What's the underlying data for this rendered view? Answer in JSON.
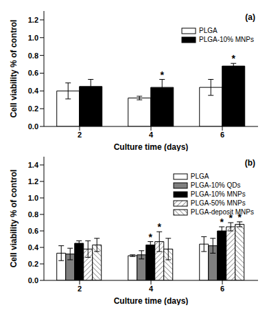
{
  "chart_data": [
    {
      "type": "bar",
      "title": "(a)",
      "x_label": "Culture time (days)",
      "y_label": "Cell viability % of control",
      "categories": [
        "2",
        "4",
        "6"
      ],
      "series": [
        {
          "name": "PLGA",
          "color": "#ffffff",
          "values": [
            0.4,
            0.32,
            0.44
          ],
          "error": [
            0.09,
            0.02,
            0.09
          ],
          "annotations": [
            null,
            null,
            null
          ]
        },
        {
          "name": "PLGA-10% MNPs",
          "color": "#000000",
          "values": [
            0.45,
            0.44,
            0.68
          ],
          "error": [
            0.08,
            0.09,
            0.03
          ],
          "annotations": [
            null,
            "*",
            "*"
          ]
        }
      ],
      "ylim": [
        0,
        1.3
      ],
      "yticks": [
        {
          "value": 0,
          "label": "0.0"
        },
        0.2,
        0.4,
        0.6,
        0.8,
        {
          "value": 1,
          "label": "1.0"
        },
        1.2
      ],
      "legend": "upper right",
      "grid": false
    },
    {
      "type": "bar",
      "title": "(b)",
      "x_label": "Culture time (days)",
      "y_label": "Cell viability % of control",
      "categories": [
        "2",
        "4",
        "6"
      ],
      "series": [
        {
          "name": "PLGA",
          "color": "#ffffff",
          "values": [
            0.33,
            0.3,
            0.44
          ],
          "error": [
            0.09,
            0.01,
            0.09
          ],
          "annotations": [
            null,
            null,
            null
          ]
        },
        {
          "name": "PLGA-10% QDs",
          "color": "#7f7f7f",
          "values": [
            0.32,
            0.31,
            0.42
          ],
          "error": [
            0.07,
            0.05,
            0.09
          ],
          "annotations": [
            null,
            null,
            null
          ]
        },
        {
          "name": "PLGA-10% MNPs",
          "color": "#000000",
          "values": [
            0.45,
            0.43,
            0.6
          ],
          "error": [
            0.03,
            0.04,
            0.05
          ],
          "annotations": [
            null,
            "*",
            "*"
          ]
        },
        {
          "name": "PLGA-50% MNPs",
          "color": "#ffffff",
          "values": [
            0.38,
            0.47,
            0.65
          ],
          "error": [
            0.1,
            0.12,
            0.05
          ],
          "annotations": [
            null,
            "*",
            "*"
          ]
        },
        {
          "name": "PLGA-deposit MNPs",
          "color": "#ffffff",
          "values": [
            0.43,
            0.38,
            0.68
          ],
          "error": [
            0.08,
            0.13,
            0.03
          ],
          "annotations": [
            null,
            null,
            "*"
          ]
        }
      ],
      "ylim": [
        0,
        1.5
      ],
      "yticks": [
        {
          "value": 0,
          "label": "0.0"
        },
        0.2,
        0.4,
        0.6,
        0.8,
        {
          "value": 1,
          "label": "1.0"
        },
        1.2,
        1.4
      ],
      "legend": "upper right",
      "grid": false
    }
  ]
}
